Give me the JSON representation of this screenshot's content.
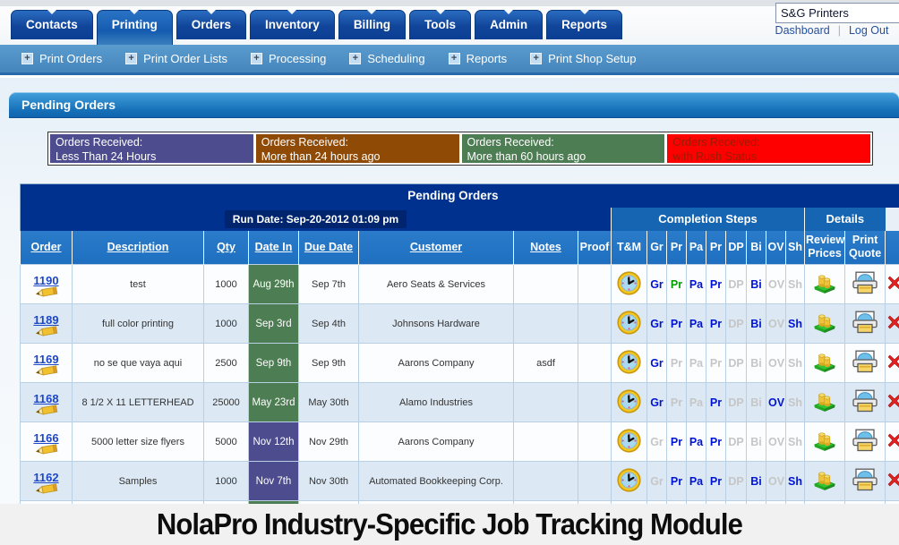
{
  "topbar": {
    "company": "S&G Printers",
    "dashboard_label": "Dashboard",
    "logout_label": "Log Out"
  },
  "tabs": [
    {
      "label": "Contacts",
      "active": false
    },
    {
      "label": "Printing",
      "active": true
    },
    {
      "label": "Orders",
      "active": false
    },
    {
      "label": "Inventory",
      "active": false
    },
    {
      "label": "Billing",
      "active": false
    },
    {
      "label": "Tools",
      "active": false
    },
    {
      "label": "Admin",
      "active": false
    },
    {
      "label": "Reports",
      "active": false
    }
  ],
  "subnav": [
    "Print Orders",
    "Print Order Lists",
    "Processing",
    "Scheduling",
    "Reports",
    "Print Shop Setup"
  ],
  "section_title": "Pending Orders",
  "legend": [
    {
      "line1": "Orders Received:",
      "line2": "Less Than 24 Hours",
      "bg": "#4c4c8e",
      "fg": "#ffffff"
    },
    {
      "line1": "Orders Received:",
      "line2": "More than 24 hours ago",
      "bg": "#8f4a05",
      "fg": "#ffffff"
    },
    {
      "line1": "Orders Received:",
      "line2": "More than 60 hours ago",
      "bg": "#4d7d52",
      "fg": "#ffffff"
    },
    {
      "line1": "Orders Received:",
      "line2": "with Rush Status",
      "bg": "#ff0000",
      "fg": "#a01800"
    }
  ],
  "table": {
    "title": "Pending Orders",
    "run_date": "Run Date: Sep-20-2012 01:09 pm",
    "group_headers": {
      "completion": "Completion Steps",
      "details": "Details"
    },
    "columns": [
      {
        "label": "Order",
        "sortable": true
      },
      {
        "label": "Description",
        "sortable": true
      },
      {
        "label": "Qty",
        "sortable": true
      },
      {
        "label": "Date In",
        "sortable": true
      },
      {
        "label": "Due Date",
        "sortable": true
      },
      {
        "label": "Customer",
        "sortable": true
      },
      {
        "label": "Notes",
        "sortable": true
      },
      {
        "label": "Proof",
        "sortable": false
      },
      {
        "label": "T&M",
        "sortable": false
      }
    ],
    "step_columns": [
      "Gr",
      "Pr",
      "Pa",
      "Pr",
      "DP",
      "Bi",
      "OV",
      "Sh"
    ],
    "detail_columns": [
      "Review Prices",
      "Print Quote"
    ],
    "rows": [
      {
        "order": "1190",
        "description": "test",
        "qty": "1000",
        "date_in": "Aug 29th",
        "date_in_age": "over60",
        "due_date": "Sep 7th",
        "customer": "Aero Seats & Services",
        "notes": "",
        "proof": "",
        "steps": [
          "blue",
          "green",
          "blue",
          "blue",
          "gray",
          "blue",
          "gray",
          "gray"
        ]
      },
      {
        "order": "1189",
        "description": "full color printing",
        "qty": "1000",
        "date_in": "Sep 3rd",
        "date_in_age": "over60",
        "due_date": "Sep 4th",
        "customer": "Johnsons Hardware",
        "notes": "",
        "proof": "",
        "steps": [
          "blue",
          "blue",
          "blue",
          "blue",
          "gray",
          "blue",
          "gray",
          "blue"
        ]
      },
      {
        "order": "1169",
        "description": "no se que vaya aqui",
        "qty": "2500",
        "date_in": "Sep 9th",
        "date_in_age": "over60",
        "due_date": "Sep 9th",
        "customer": "Aarons Company",
        "notes": "asdf",
        "proof": "",
        "steps": [
          "blue",
          "gray",
          "gray",
          "gray",
          "gray",
          "gray",
          "gray",
          "gray"
        ]
      },
      {
        "order": "1168",
        "description": "8 1/2 X 11 LETTERHEAD",
        "qty": "25000",
        "date_in": "May 23rd",
        "date_in_age": "over60",
        "due_date": "May 30th",
        "customer": "Alamo Industries",
        "notes": "",
        "proof": "",
        "steps": [
          "blue",
          "gray",
          "gray",
          "blue",
          "gray",
          "gray",
          "blue",
          "gray"
        ]
      },
      {
        "order": "1166",
        "description": "5000 letter size flyers",
        "qty": "5000",
        "date_in": "Nov 12th",
        "date_in_age": "under24",
        "due_date": "Nov 29th",
        "customer": "Aarons Company",
        "notes": "",
        "proof": "",
        "steps": [
          "gray",
          "blue",
          "blue",
          "blue",
          "gray",
          "gray",
          "gray",
          "gray"
        ]
      },
      {
        "order": "1162",
        "description": "Samples",
        "qty": "1000",
        "date_in": "Nov 7th",
        "date_in_age": "under24",
        "due_date": "Nov 30th",
        "customer": "Automated Bookkeeping Corp.",
        "notes": "",
        "proof": "",
        "steps": [
          "gray",
          "blue",
          "blue",
          "blue",
          "gray",
          "blue",
          "gray",
          "blue"
        ]
      }
    ],
    "partial_row": {
      "date_in_age": "over60"
    }
  },
  "footer_title": "NolaPro Industry-Specific Job Tracking Module",
  "icons": {
    "tm_column": "clock-icon",
    "review_prices": "money-coins-icon",
    "print_quote": "printer-icon",
    "delete_row": "delete-x-icon",
    "edit_order": "pencil-icon",
    "subnav_bullet": "plus-box-icon"
  },
  "colors": {
    "nav_tab_blue": "#0a3f94",
    "subnav_blue": "#4585bd",
    "table_header_navy": "#00318f",
    "group_band_blue": "#1565b2",
    "column_header_blue": "#1e6fc0",
    "row_alt_blue": "#dce9f5",
    "date_over60_green": "#4d7d52",
    "date_under24_purple": "#4c4c8e",
    "step_active_blue": "#0014d4",
    "step_done_green": "#00a000",
    "step_off_gray": "#c6c6c6",
    "rush_red": "#ff0000"
  }
}
